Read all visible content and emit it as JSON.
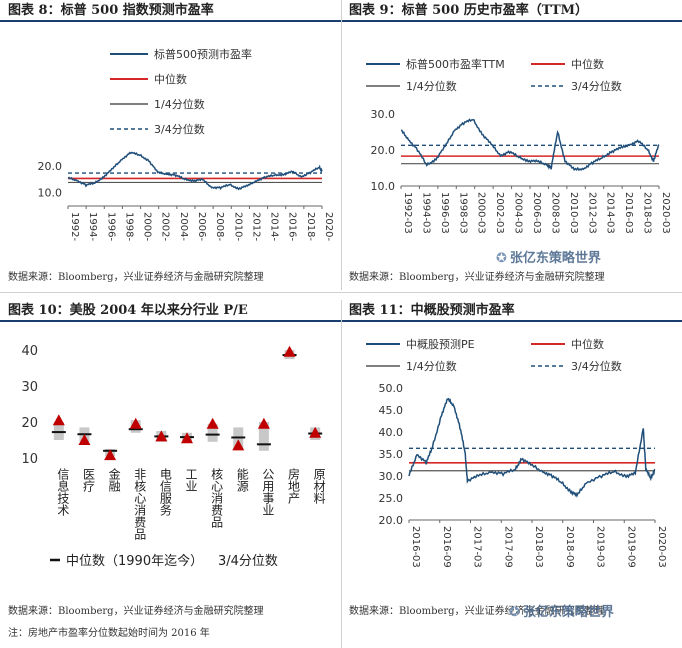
{
  "colors": {
    "series": "#1f4e79",
    "median": "#d62728",
    "q1": "#555555",
    "q3": "#1f4e79",
    "marker": "#c00000",
    "box": "#c8c8c8"
  },
  "panels": {
    "p8": {
      "title": "图表 8：标普 500 指数预测市盈率",
      "source": "数据来源：Bloomberg，兴业证券经济与金融研究院整理"
    },
    "p9": {
      "title": "图表 9：标普 500 历史市盈率（TTM）",
      "source": "数据来源：Bloomberg，兴业证券经济与金融研究院整理"
    },
    "p10": {
      "title": "图表 10：美股 2004 年以来分行业 P/E",
      "source": "数据来源：Bloomberg，兴业证券经济与金融研究院整理",
      "note": "注：房地产市盈率分位数起始时间为 2016 年"
    },
    "p11": {
      "title": "图表 11：中概股预测市盈率",
      "source": "数据来源：Bloomberg，兴业证券经济与金融研究院整理"
    }
  },
  "watermark": {
    "text": "张亿东策略世界",
    "icon": "wechat-icon"
  },
  "chart_data": [
    {
      "id": "p8",
      "type": "line",
      "legend": [
        "标普500预测市盈率",
        "中位数",
        "1/4分位数",
        "3/4分位数"
      ],
      "legend_position": "top-right",
      "yticks": [
        "10.0",
        "20.0"
      ],
      "ylim": [
        5,
        45
      ],
      "xticks": [
        "1992-",
        "1994-",
        "1996-",
        "1998-",
        "2000-",
        "2002-",
        "2004-",
        "2006-",
        "2008-",
        "2010-",
        "2012-",
        "2014-",
        "2016-",
        "2018-",
        "2020-"
      ],
      "xrange": [
        1992,
        2020.3
      ],
      "median": 15.3,
      "q1": 13.8,
      "q3": 17.3,
      "series": [
        [
          1992.0,
          15.5
        ],
        [
          1993.0,
          14.6
        ],
        [
          1994.0,
          12.8
        ],
        [
          1995.0,
          13.6
        ],
        [
          1996.0,
          16.0
        ],
        [
          1997.0,
          19.0
        ],
        [
          1998.0,
          22.5
        ],
        [
          1999.0,
          25.0
        ],
        [
          2000.0,
          24.0
        ],
        [
          2001.0,
          22.0
        ],
        [
          2002.0,
          17.5
        ],
        [
          2003.0,
          17.0
        ],
        [
          2004.0,
          16.5
        ],
        [
          2005.0,
          15.0
        ],
        [
          2006.0,
          14.5
        ],
        [
          2007.0,
          14.8
        ],
        [
          2008.0,
          12.0
        ],
        [
          2009.0,
          11.8
        ],
        [
          2010.0,
          13.0
        ],
        [
          2011.0,
          11.5
        ],
        [
          2012.0,
          12.5
        ],
        [
          2013.0,
          14.5
        ],
        [
          2014.0,
          15.8
        ],
        [
          2015.0,
          16.5
        ],
        [
          2016.0,
          16.8
        ],
        [
          2017.0,
          17.8
        ],
        [
          2018.0,
          16.0
        ],
        [
          2019.0,
          17.5
        ],
        [
          2020.0,
          19.5
        ],
        [
          2020.3,
          18.0
        ]
      ]
    },
    {
      "id": "p9",
      "type": "line",
      "legend": [
        "标普500市盈率TTM",
        "中位数",
        "1/4分位数",
        "3/4分位数"
      ],
      "legend_position": "top",
      "yticks": [
        "10.0",
        "20.0",
        "30.0"
      ],
      "ylim": [
        10,
        30
      ],
      "xticks": [
        "1992-03",
        "1994-03",
        "1996-03",
        "1998-03",
        "2000-03",
        "2002-03",
        "2004-03",
        "2006-03",
        "2008-03",
        "2010-03",
        "2012-03",
        "2014-03",
        "2016-03",
        "2018-03",
        "2020-03"
      ],
      "xrange": [
        1992.2,
        2020.2
      ],
      "median": 18.3,
      "q1": 16.2,
      "q3": 21.3,
      "series": [
        [
          1992.2,
          25.5
        ],
        [
          1993.0,
          23.0
        ],
        [
          1994.0,
          20.0
        ],
        [
          1995.0,
          15.8
        ],
        [
          1996.0,
          17.5
        ],
        [
          1997.0,
          21.0
        ],
        [
          1998.0,
          25.5
        ],
        [
          1999.0,
          27.5
        ],
        [
          2000.0,
          28.5
        ],
        [
          2001.0,
          24.5
        ],
        [
          2002.0,
          21.5
        ],
        [
          2003.0,
          18.5
        ],
        [
          2004.0,
          19.5
        ],
        [
          2005.0,
          18.0
        ],
        [
          2006.0,
          17.0
        ],
        [
          2007.0,
          16.8
        ],
        [
          2008.0,
          16.0
        ],
        [
          2008.5,
          15.0
        ],
        [
          2009.2,
          25.0
        ],
        [
          2010.0,
          17.0
        ],
        [
          2011.0,
          14.5
        ],
        [
          2012.0,
          14.8
        ],
        [
          2013.0,
          16.5
        ],
        [
          2014.0,
          17.8
        ],
        [
          2015.0,
          19.5
        ],
        [
          2016.0,
          20.5
        ],
        [
          2017.0,
          21.5
        ],
        [
          2018.0,
          22.5
        ],
        [
          2019.0,
          20.0
        ],
        [
          2019.6,
          17.0
        ],
        [
          2020.2,
          21.5
        ]
      ]
    },
    {
      "id": "p10",
      "type": "box",
      "legend": [
        "中位数（1990年迄今）",
        "3/4分位数"
      ],
      "legend_position": "bottom",
      "yticks": [
        "10",
        "20",
        "30",
        "40"
      ],
      "ylim": [
        10,
        40
      ],
      "categories": [
        "信息技术",
        "医疗",
        "金融",
        "非核心消费品",
        "电信服务",
        "工业",
        "核心消费品",
        "能源",
        "公用事业",
        "房地产",
        "原材料"
      ],
      "median": [
        17.2,
        16.6,
        12.0,
        18.0,
        16.0,
        15.8,
        16.5,
        15.7,
        13.8,
        38.6,
        16.8
      ],
      "box_low": [
        15.0,
        14.5,
        10.5,
        17.0,
        14.5,
        14.5,
        14.5,
        12.5,
        12.0,
        37.5,
        15.0
      ],
      "box_high": [
        20.0,
        18.5,
        12.5,
        20.5,
        17.5,
        17.0,
        19.5,
        18.5,
        20.0,
        40.0,
        18.5
      ],
      "current": [
        20.5,
        15.0,
        10.8,
        19.5,
        16.0,
        15.5,
        19.5,
        13.5,
        19.5,
        39.5,
        17.0
      ]
    },
    {
      "id": "p11",
      "type": "line",
      "legend": [
        "中概股预测PE",
        "中位数",
        "1/4分位数",
        "3/4分位数"
      ],
      "legend_position": "top",
      "yticks": [
        "20.0",
        "25.0",
        "30.0",
        "35.0",
        "40.0",
        "45.0",
        "50.0"
      ],
      "ylim": [
        20,
        50
      ],
      "xticks": [
        "2016-03",
        "2016-09",
        "2017-03",
        "2017-09",
        "2018-03",
        "2018-09",
        "2019-03",
        "2019-09",
        "2020-03"
      ],
      "xrange": [
        2016.17,
        2020.17
      ],
      "median": 33.0,
      "q1": 31.2,
      "q3": 36.3,
      "series": [
        [
          2016.17,
          30.0
        ],
        [
          2016.3,
          35.0
        ],
        [
          2016.45,
          33.0
        ],
        [
          2016.55,
          36.5
        ],
        [
          2016.7,
          44.0
        ],
        [
          2016.8,
          47.5
        ],
        [
          2016.9,
          46.0
        ],
        [
          2017.0,
          41.0
        ],
        [
          2017.08,
          35.5
        ],
        [
          2017.12,
          29.0
        ],
        [
          2017.3,
          30.0
        ],
        [
          2017.5,
          31.0
        ],
        [
          2017.7,
          30.5
        ],
        [
          2017.9,
          31.5
        ],
        [
          2018.0,
          34.0
        ],
        [
          2018.15,
          32.5
        ],
        [
          2018.35,
          31.0
        ],
        [
          2018.5,
          30.0
        ],
        [
          2018.65,
          28.5
        ],
        [
          2018.8,
          26.5
        ],
        [
          2018.9,
          25.5
        ],
        [
          2019.05,
          28.5
        ],
        [
          2019.3,
          30.0
        ],
        [
          2019.5,
          31.0
        ],
        [
          2019.7,
          30.0
        ],
        [
          2019.85,
          30.5
        ],
        [
          2019.98,
          41.0
        ],
        [
          2020.02,
          31.5
        ],
        [
          2020.1,
          29.5
        ],
        [
          2020.17,
          31.5
        ]
      ]
    }
  ]
}
